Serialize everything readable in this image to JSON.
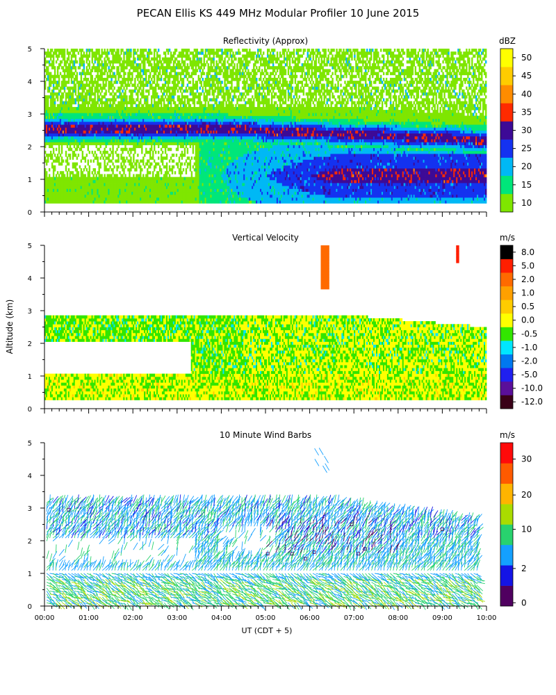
{
  "figure": {
    "title": "PECAN Ellis KS 449 MHz Modular Profiler 10 June 2015",
    "ylabel": "Altitude (km)",
    "xlabel": "UT  (CDT + 5)"
  },
  "chart_data": [
    {
      "type": "heatmap",
      "title": "Reflectivity (Approx)",
      "units": "dBZ",
      "x": [
        "00:00",
        "01:00",
        "02:00",
        "03:00",
        "04:00",
        "05:00",
        "06:00",
        "07:00",
        "08:00",
        "09:00",
        "10:00"
      ],
      "xlim": [
        0,
        10
      ],
      "ylim": [
        0,
        5
      ],
      "yticks": [
        0,
        1,
        2,
        3,
        4,
        5
      ],
      "colorbar": {
        "labels": [
          "10",
          "15",
          "20",
          "25",
          "30",
          "35",
          "40",
          "45",
          "50"
        ],
        "colors": [
          "#7fe600",
          "#00e67a",
          "#00b8f5",
          "#1432f0",
          "#3d0a96",
          "#ff2a00",
          "#ff8c00",
          "#ffcc00",
          "#ffff00"
        ]
      }
    },
    {
      "type": "heatmap",
      "title": "Vertical Velocity",
      "units": "m/s",
      "x": [
        "00:00",
        "01:00",
        "02:00",
        "03:00",
        "04:00",
        "05:00",
        "06:00",
        "07:00",
        "08:00",
        "09:00",
        "10:00"
      ],
      "xlim": [
        0,
        10
      ],
      "ylim": [
        0,
        5
      ],
      "yticks": [
        0,
        1,
        2,
        3,
        4,
        5
      ],
      "colorbar": {
        "labels": [
          "-12.0",
          "-10.0",
          "-5.0",
          "-2.0",
          "-1.0",
          "-0.5",
          "0.0",
          "0.5",
          "1.0",
          "2.0",
          "5.0",
          "8.0"
        ],
        "colors": [
          "#3a0018",
          "#5a0f9a",
          "#2020f0",
          "#0078f0",
          "#00e6ff",
          "#32e600",
          "#ffff00",
          "#ffcc00",
          "#ffa000",
          "#ff6a00",
          "#ff1e00",
          "#000000"
        ]
      }
    },
    {
      "type": "scatter",
      "title": "10 Minute Wind Barbs",
      "units": "m/s",
      "x": [
        "00:00",
        "01:00",
        "02:00",
        "03:00",
        "04:00",
        "05:00",
        "06:00",
        "07:00",
        "08:00",
        "09:00",
        "10:00"
      ],
      "xlim": [
        0,
        10
      ],
      "ylim": [
        0,
        5
      ],
      "yticks": [
        0,
        1,
        2,
        3,
        4,
        5
      ],
      "colorbar": {
        "labels": [
          "0",
          "2",
          "10",
          "20",
          "30"
        ],
        "colors": [
          "#500060",
          "#1414e6",
          "#14a0ff",
          "#28d26e",
          "#aadc00",
          "#ffb400",
          "#ff5a00",
          "#ff0a0a"
        ]
      }
    }
  ]
}
